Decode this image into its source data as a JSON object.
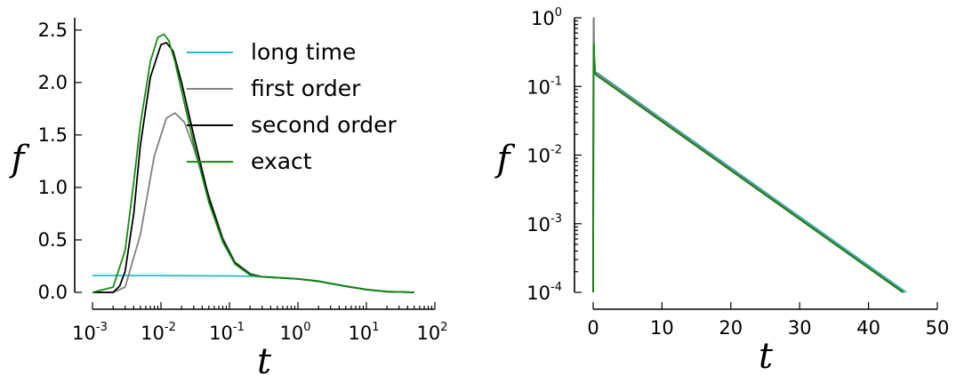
{
  "chart_data": [
    {
      "type": "line",
      "xscale": "log",
      "xlim": [
        0.001,
        100
      ],
      "ylim": [
        0,
        2.6
      ],
      "xlabel": "t",
      "ylabel": "f",
      "grid": false,
      "legend": {
        "placement": "top-right",
        "frame": false
      },
      "xticks": [
        {
          "value": 0.001,
          "base": "10",
          "exp": "-3"
        },
        {
          "value": 0.01,
          "base": "10",
          "exp": "-2"
        },
        {
          "value": 0.1,
          "base": "10",
          "exp": "-1"
        },
        {
          "value": 1,
          "base": "10",
          "exp": "0"
        },
        {
          "value": 10,
          "base": "10",
          "exp": "1"
        },
        {
          "value": 100,
          "base": "10",
          "exp": "2"
        }
      ],
      "yticks": [
        {
          "value": 0.0,
          "label": "0.0"
        },
        {
          "value": 0.5,
          "label": "0.5"
        },
        {
          "value": 1.0,
          "label": "1.0"
        },
        {
          "value": 1.5,
          "label": "1.5"
        },
        {
          "value": 2.0,
          "label": "2.0"
        },
        {
          "value": 2.5,
          "label": "2.5"
        }
      ],
      "series": [
        {
          "name": "long time",
          "color": "#22bfc4",
          "x": [
            0.001,
            0.01,
            0.1,
            0.2,
            0.4,
            1,
            2,
            5,
            10,
            20,
            50
          ],
          "y": [
            0.16,
            0.16,
            0.157,
            0.153,
            0.146,
            0.13,
            0.108,
            0.06,
            0.028,
            0.008,
            0.001
          ]
        },
        {
          "name": "first order",
          "color": "#808080",
          "x": [
            0.001,
            0.002,
            0.003,
            0.005,
            0.008,
            0.012,
            0.016,
            0.022,
            0.03,
            0.05,
            0.08,
            0.12,
            0.2,
            0.3,
            0.5,
            1,
            2,
            5,
            10,
            20,
            50
          ],
          "y": [
            0.0,
            0.0,
            0.05,
            0.55,
            1.3,
            1.66,
            1.71,
            1.62,
            1.38,
            0.92,
            0.52,
            0.29,
            0.18,
            0.148,
            0.14,
            0.128,
            0.105,
            0.058,
            0.026,
            0.007,
            0.0
          ]
        },
        {
          "name": "second order",
          "color": "#000000",
          "x": [
            0.001,
            0.002,
            0.0025,
            0.003,
            0.004,
            0.005,
            0.007,
            0.01,
            0.012,
            0.015,
            0.02,
            0.03,
            0.05,
            0.08,
            0.12,
            0.2,
            0.3,
            0.5,
            1,
            2,
            5,
            10,
            20,
            50
          ],
          "y": [
            0.0,
            0.0,
            0.06,
            0.2,
            0.75,
            1.4,
            2.05,
            2.36,
            2.38,
            2.3,
            2.0,
            1.5,
            0.9,
            0.5,
            0.28,
            0.17,
            0.148,
            0.14,
            0.128,
            0.105,
            0.058,
            0.026,
            0.007,
            0.0
          ]
        },
        {
          "name": "exact",
          "color": "#168b16",
          "x": [
            0.001,
            0.002,
            0.003,
            0.004,
            0.005,
            0.007,
            0.009,
            0.011,
            0.013,
            0.016,
            0.02,
            0.03,
            0.05,
            0.08,
            0.12,
            0.2,
            0.3,
            0.5,
            1,
            2,
            5,
            10,
            20,
            50
          ],
          "y": [
            0.0,
            0.05,
            0.4,
            1.05,
            1.6,
            2.2,
            2.43,
            2.46,
            2.4,
            2.2,
            1.92,
            1.42,
            0.86,
            0.48,
            0.27,
            0.165,
            0.148,
            0.14,
            0.128,
            0.105,
            0.058,
            0.026,
            0.007,
            0.0
          ]
        }
      ]
    },
    {
      "type": "line",
      "yscale": "log",
      "xlim": [
        0,
        50
      ],
      "ylim": [
        0.0001,
        1
      ],
      "xlabel": "t",
      "ylabel": "f",
      "grid": false,
      "xticks": [
        {
          "value": 0,
          "label": "0"
        },
        {
          "value": 10,
          "label": "10"
        },
        {
          "value": 20,
          "label": "20"
        },
        {
          "value": 30,
          "label": "30"
        },
        {
          "value": 40,
          "label": "40"
        },
        {
          "value": 50,
          "label": "50"
        }
      ],
      "yticks": [
        {
          "value": 1,
          "base": "10",
          "exp": "0"
        },
        {
          "value": 0.1,
          "base": "10",
          "exp": "-1"
        },
        {
          "value": 0.01,
          "base": "10",
          "exp": "-2"
        },
        {
          "value": 0.001,
          "base": "10",
          "exp": "-3"
        },
        {
          "value": 0.0001,
          "base": "10",
          "exp": "-4"
        }
      ],
      "series": [
        {
          "name": "long time",
          "color": "#22bfc4",
          "x": [
            0.5,
            45.5
          ],
          "y": [
            0.16,
            0.0001
          ]
        },
        {
          "name": "first order",
          "color": "#808080",
          "x": [
            0.0,
            0.05,
            0.1,
            0.15,
            0.3,
            0.5,
            45.2
          ],
          "y": [
            0.0001,
            0.95,
            1.0,
            0.3,
            0.16,
            0.155,
            0.0001
          ]
        },
        {
          "name": "second order",
          "color": "#000000",
          "x": [
            0.0,
            0.05,
            0.1,
            0.15,
            0.3,
            0.5,
            45.0
          ],
          "y": [
            0.0001,
            0.3,
            0.4,
            0.25,
            0.15,
            0.145,
            0.0001
          ]
        },
        {
          "name": "exact",
          "color": "#168b16",
          "x": [
            0.0,
            0.05,
            0.1,
            0.15,
            0.3,
            0.5,
            45.0
          ],
          "y": [
            0.0001,
            0.35,
            0.42,
            0.25,
            0.15,
            0.145,
            0.0001
          ]
        }
      ]
    }
  ]
}
